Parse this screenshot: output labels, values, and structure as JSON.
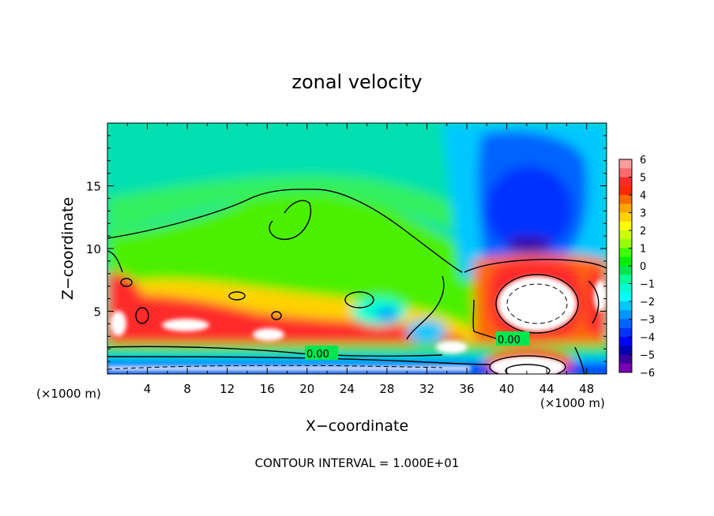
{
  "chart_data": {
    "type": "heatmap",
    "title": "zonal velocity",
    "xlabel": "X−coordinate",
    "ylabel": "Z−coordinate",
    "x_unit_left": "(×1000 m)",
    "x_unit_right": "(×1000 m)",
    "footnote": "CONTOUR INTERVAL = 1.000E+01",
    "xlim": [
      0,
      50
    ],
    "ylim": [
      0,
      20
    ],
    "x_ticks": [
      "4",
      "8",
      "12",
      "16",
      "20",
      "24",
      "28",
      "32",
      "36",
      "40",
      "44",
      "48"
    ],
    "y_ticks": [
      "5",
      "10",
      "15"
    ],
    "colorbar": {
      "range": [
        -6,
        6
      ],
      "labels": [
        "6",
        "5",
        "4",
        "3",
        "2",
        "1",
        "0",
        "−1",
        "−2",
        "−3",
        "−4",
        "−5",
        "−6"
      ],
      "colors": [
        "#ff9c9c",
        "#ff6b6b",
        "#ff2a2a",
        "#ff2800",
        "#ff6a00",
        "#ffa500",
        "#ffd200",
        "#ffff00",
        "#c8ff00",
        "#96ff00",
        "#3cff00",
        "#00f000",
        "#00e650",
        "#00ff96",
        "#00ffd2",
        "#00ffff",
        "#00c8ff",
        "#0096ff",
        "#0064ff",
        "#0032ff",
        "#0000ff",
        "#0000b4",
        "#3c00a0",
        "#7800b4"
      ]
    },
    "contour_labels": [
      "0.00",
      "0.00"
    ]
  },
  "colors": {
    "background": "#ffffff",
    "axis": "#000000"
  }
}
